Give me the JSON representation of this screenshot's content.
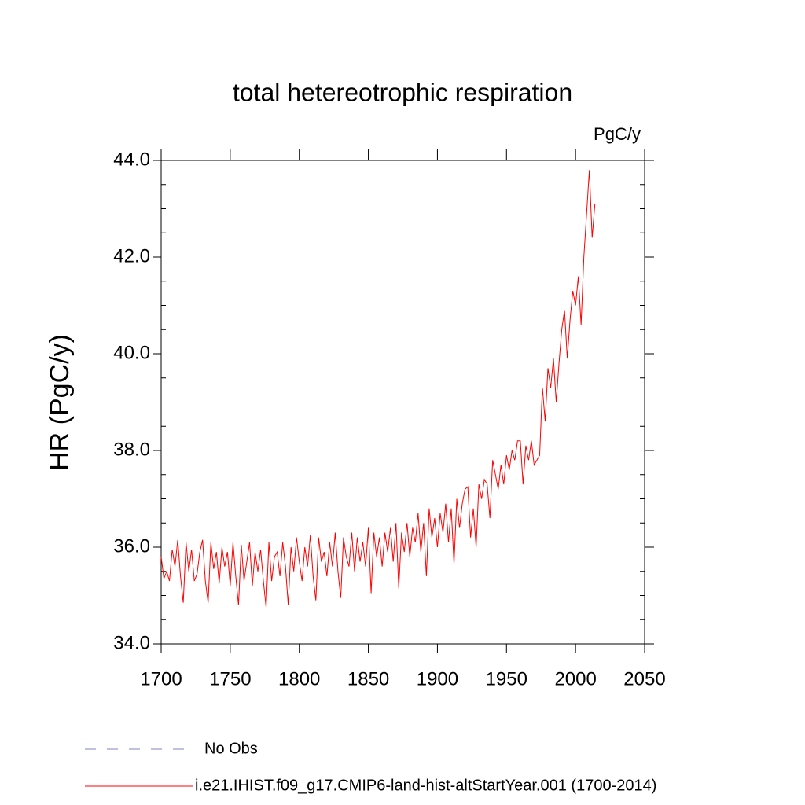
{
  "chart_data": {
    "type": "line",
    "title": "total hetereotrophic respiration",
    "units_label": "PgC/y",
    "ylabel": "HR  (PgC/y)",
    "x": [
      1700,
      1702,
      1704,
      1706,
      1708,
      1710,
      1712,
      1714,
      1716,
      1718,
      1720,
      1722,
      1724,
      1726,
      1728,
      1730,
      1732,
      1734,
      1736,
      1738,
      1740,
      1742,
      1744,
      1746,
      1748,
      1750,
      1752,
      1754,
      1756,
      1758,
      1760,
      1762,
      1764,
      1766,
      1768,
      1770,
      1772,
      1774,
      1776,
      1778,
      1780,
      1782,
      1784,
      1786,
      1788,
      1790,
      1792,
      1794,
      1796,
      1798,
      1800,
      1802,
      1804,
      1806,
      1808,
      1810,
      1812,
      1814,
      1816,
      1818,
      1820,
      1822,
      1824,
      1826,
      1828,
      1830,
      1832,
      1834,
      1836,
      1838,
      1840,
      1842,
      1844,
      1846,
      1848,
      1850,
      1852,
      1854,
      1856,
      1858,
      1860,
      1862,
      1864,
      1866,
      1868,
      1870,
      1872,
      1874,
      1876,
      1878,
      1880,
      1882,
      1884,
      1886,
      1888,
      1890,
      1892,
      1894,
      1896,
      1898,
      1900,
      1902,
      1904,
      1906,
      1908,
      1910,
      1912,
      1914,
      1916,
      1918,
      1920,
      1922,
      1924,
      1926,
      1928,
      1930,
      1932,
      1934,
      1936,
      1938,
      1940,
      1942,
      1944,
      1946,
      1948,
      1950,
      1952,
      1954,
      1956,
      1958,
      1960,
      1962,
      1964,
      1966,
      1968,
      1970,
      1972,
      1974,
      1976,
      1978,
      1980,
      1982,
      1984,
      1986,
      1988,
      1990,
      1992,
      1994,
      1996,
      1998,
      2000,
      2002,
      2004,
      2006,
      2008,
      2010,
      2012,
      2014
    ],
    "series": [
      {
        "name": "i.e21.IHIST.f09_g17.CMIP6-land-hist-altStartYear.001 (1700-2014)",
        "color": "#ff0000",
        "values": [
          35.8,
          35.35,
          35.5,
          35.3,
          35.95,
          35.6,
          36.15,
          35.4,
          34.85,
          36.1,
          35.5,
          35.95,
          35.3,
          35.45,
          35.9,
          36.15,
          35.3,
          34.85,
          36.1,
          35.55,
          35.9,
          35.25,
          36.0,
          35.6,
          35.9,
          35.2,
          36.1,
          35.4,
          34.8,
          36.05,
          35.3,
          35.7,
          36.1,
          35.2,
          35.9,
          35.5,
          35.95,
          35.3,
          34.75,
          36.1,
          35.3,
          35.8,
          35.9,
          35.4,
          36.1,
          35.6,
          34.8,
          36.0,
          35.5,
          36.2,
          35.7,
          35.3,
          36.0,
          35.6,
          36.25,
          35.4,
          34.9,
          36.2,
          35.7,
          35.9,
          35.4,
          36.1,
          35.6,
          36.3,
          35.5,
          34.95,
          36.2,
          35.8,
          35.6,
          36.3,
          35.5,
          36.2,
          35.7,
          36.1,
          35.6,
          36.4,
          35.05,
          36.3,
          35.8,
          36.2,
          35.6,
          36.3,
          35.9,
          36.4,
          35.7,
          36.5,
          35.15,
          36.3,
          35.9,
          36.5,
          35.8,
          36.4,
          36.1,
          36.7,
          35.9,
          36.5,
          35.4,
          36.8,
          36.2,
          36.6,
          36.0,
          36.7,
          36.3,
          36.9,
          36.1,
          36.8,
          35.65,
          37.0,
          36.4,
          36.9,
          37.2,
          37.25,
          36.2,
          36.8,
          36.0,
          37.3,
          37.0,
          37.4,
          37.3,
          36.6,
          37.8,
          37.5,
          37.2,
          37.7,
          37.3,
          37.9,
          37.6,
          38.0,
          37.8,
          38.2,
          38.2,
          37.3,
          38.1,
          37.8,
          38.2,
          37.7,
          37.8,
          37.9,
          39.3,
          38.6,
          39.7,
          39.3,
          39.9,
          39.0,
          39.8,
          40.5,
          40.9,
          39.9,
          40.7,
          41.3,
          41.0,
          41.6,
          40.6,
          42.0,
          42.9,
          43.8,
          42.4,
          43.1
        ]
      }
    ],
    "reference_legend": {
      "name": "No Obs",
      "color": "#8080c0",
      "dash": "dashed"
    },
    "xlim": [
      1700,
      2050
    ],
    "xticks": [
      1700,
      1750,
      1800,
      1850,
      1900,
      1950,
      2000,
      2050
    ],
    "ylim": [
      34,
      44
    ],
    "yticks": [
      {
        "value": 34,
        "label": "34.0"
      },
      {
        "value": 36,
        "label": "36.0"
      },
      {
        "value": 38,
        "label": "38.0"
      },
      {
        "value": 40,
        "label": "40.0"
      },
      {
        "value": 42,
        "label": "42.0"
      },
      {
        "value": 44,
        "label": "44.0"
      }
    ],
    "yminor_step": 0.5
  }
}
